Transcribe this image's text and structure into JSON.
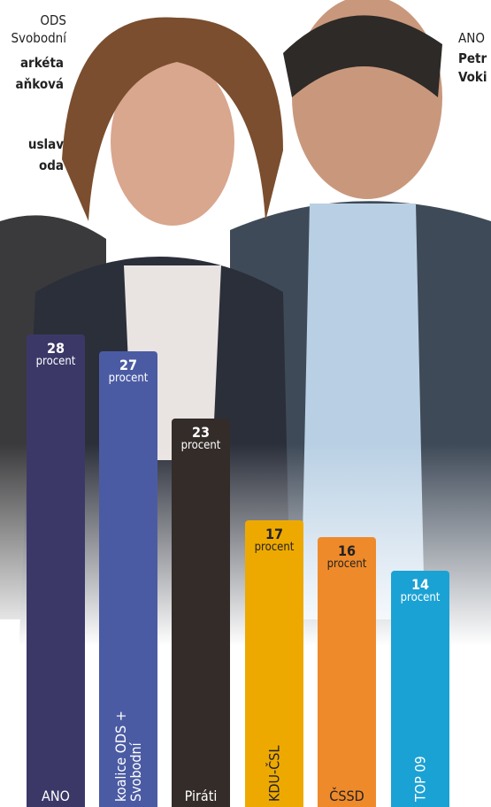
{
  "chart_data": {
    "type": "bar",
    "annotations": [
      "ODS",
      "Svobodní",
      "arkéta",
      "aňková",
      "uslav",
      "oda",
      "ANO",
      "Petr",
      "Voki"
    ],
    "value_unit": "procent",
    "categories": [
      "ANO",
      "koalice ODS + Svobodní",
      "Piráti",
      "KDU-ČSL",
      "ČSSD",
      "TOP 09"
    ],
    "values": [
      28,
      27,
      23,
      17,
      16,
      14
    ],
    "colors": [
      "#3b3868",
      "#4b5ba3",
      "#332c29",
      "#eea900",
      "#ef8a2a",
      "#1ba2d4"
    ],
    "ylim": [
      0,
      28
    ]
  }
}
